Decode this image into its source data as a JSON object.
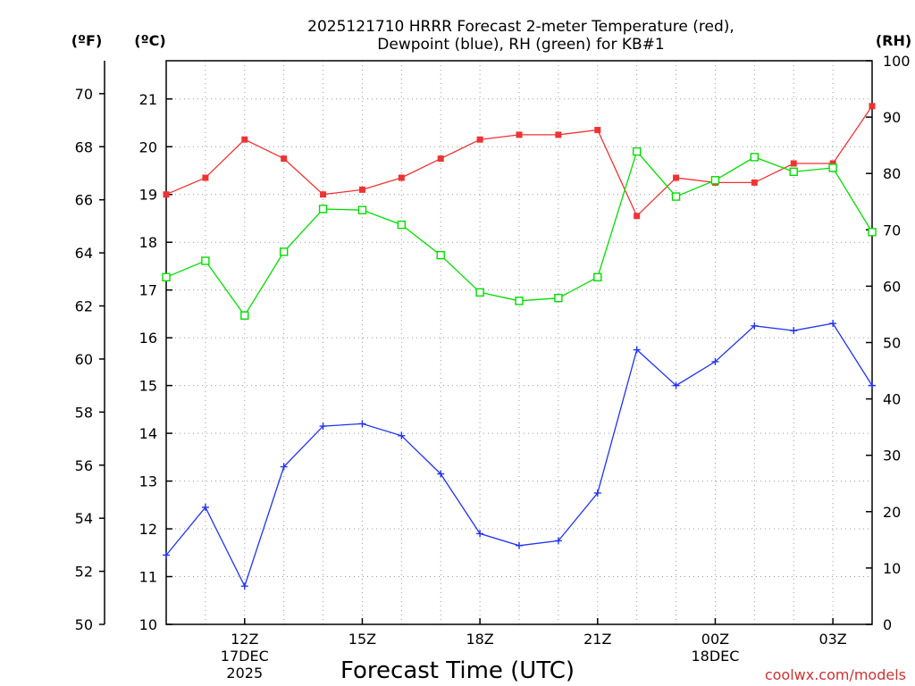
{
  "colors": {
    "temperature": "#ee3333",
    "dewpoint": "#2233ee",
    "rh": "#00dd00",
    "credit": "#cc3333"
  },
  "chart_data": {
    "type": "line",
    "title_lines": [
      "2025121710 HRRR Forecast 2-meter Temperature (red),",
      "Dewpoint (blue), RH (green) for KB#1"
    ],
    "xlabel": "Forecast Time (UTC)",
    "units": {
      "fahrenheit": "(ºF)",
      "celsius": "(ºC)",
      "rh": "(RH)"
    },
    "x_hours": [
      10,
      11,
      12,
      13,
      14,
      15,
      16,
      17,
      18,
      19,
      20,
      21,
      22,
      23,
      24,
      25,
      26,
      27,
      28
    ],
    "xlim": [
      10,
      28
    ],
    "celsius_lim": [
      10,
      21.8
    ],
    "rh_lim": [
      0,
      100
    ],
    "x_ticks": [
      {
        "x": 12,
        "lines": [
          "12Z",
          "17DEC",
          "2025"
        ]
      },
      {
        "x": 15,
        "lines": [
          "15Z"
        ]
      },
      {
        "x": 18,
        "lines": [
          "18Z"
        ]
      },
      {
        "x": 21,
        "lines": [
          "21Z"
        ]
      },
      {
        "x": 24,
        "lines": [
          "00Z",
          "18DEC"
        ]
      },
      {
        "x": 27,
        "lines": [
          "03Z"
        ]
      }
    ],
    "fahrenheit_ticks": [
      "50",
      "52",
      "54",
      "56",
      "58",
      "60",
      "62",
      "64",
      "66",
      "68",
      "70"
    ],
    "celsius_ticks": [
      "10",
      "11",
      "12",
      "13",
      "14",
      "15",
      "16",
      "17",
      "18",
      "19",
      "20",
      "21"
    ],
    "rh_ticks": [
      "0",
      "10",
      "20",
      "30",
      "40",
      "50",
      "60",
      "70",
      "80",
      "90",
      "100"
    ],
    "series": [
      {
        "name": "Temperature",
        "units": "C",
        "color_key": "temperature",
        "marker": "filled-square",
        "values": [
          19.0,
          19.35,
          20.15,
          19.75,
          19.0,
          19.1,
          19.35,
          19.75,
          20.15,
          20.25,
          20.25,
          20.35,
          18.55,
          19.35,
          19.25,
          19.25,
          19.65,
          19.65,
          20.85
        ]
      },
      {
        "name": "Dewpoint",
        "units": "C",
        "color_key": "dewpoint",
        "marker": "plus",
        "values": [
          11.45,
          12.45,
          10.8,
          13.3,
          14.15,
          14.2,
          13.95,
          13.15,
          11.9,
          11.65,
          11.75,
          12.75,
          15.75,
          15.0,
          15.5,
          16.25,
          16.15,
          16.3,
          15.0
        ]
      },
      {
        "name": "RH",
        "units": "%",
        "color_key": "rh",
        "marker": "open-square",
        "values": [
          61.6,
          64.5,
          54.8,
          66.1,
          73.7,
          73.5,
          70.9,
          65.5,
          58.9,
          57.4,
          57.9,
          61.6,
          83.9,
          75.9,
          78.8,
          82.9,
          80.3,
          81.0,
          69.6
        ]
      }
    ]
  },
  "footer": {
    "credit": "coolwx.com/models"
  }
}
